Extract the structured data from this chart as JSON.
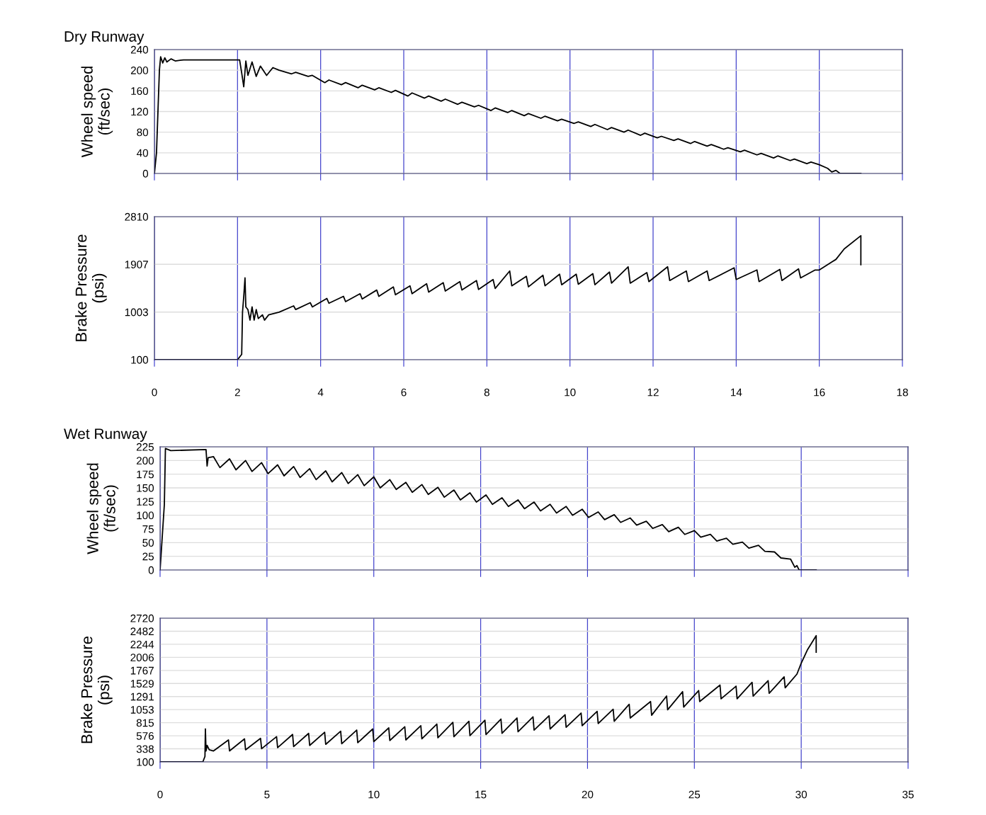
{
  "chart_data": [
    {
      "type": "line",
      "title": "Dry Runway",
      "ylabel": "Wheel speed\n(ft/sec)",
      "xlim": [
        0,
        18
      ],
      "xticks": [
        0,
        2,
        4,
        6,
        8,
        10,
        12,
        14,
        16,
        18
      ],
      "ylim": [
        0,
        240
      ],
      "yticks": [
        0,
        40,
        80,
        120,
        160,
        200,
        240
      ],
      "grid": true,
      "tick_labels": "y",
      "legend": false,
      "series": [
        {
          "color": "#000000",
          "x": [
            0,
            0.05,
            0.12,
            0.15,
            0.2,
            0.25,
            0.3,
            0.4,
            0.5,
            0.7,
            2.05,
            2.1,
            2.15,
            2.2,
            2.25,
            2.35,
            2.45,
            2.55,
            2.7,
            2.85,
            3.0,
            3.3,
            3.4,
            3.7,
            3.8,
            4.1,
            4.2,
            4.5,
            4.6,
            4.9,
            5.0,
            5.3,
            5.4,
            5.7,
            5.8,
            6.1,
            6.2,
            6.5,
            6.6,
            6.9,
            7.0,
            7.3,
            7.4,
            7.7,
            7.8,
            8.1,
            8.2,
            8.5,
            8.6,
            8.9,
            9.0,
            9.3,
            9.4,
            9.7,
            9.8,
            10.1,
            10.2,
            10.5,
            10.6,
            10.9,
            11.0,
            11.3,
            11.4,
            11.7,
            11.8,
            12.1,
            12.2,
            12.5,
            12.6,
            12.9,
            13.0,
            13.3,
            13.4,
            13.7,
            13.8,
            14.1,
            14.2,
            14.5,
            14.6,
            14.9,
            15.0,
            15.3,
            15.4,
            15.7,
            15.8,
            16.0,
            16.2,
            16.3,
            16.4,
            16.5,
            17.0
          ],
          "values": [
            0,
            40,
            200,
            226,
            214,
            224,
            216,
            222,
            218,
            220,
            220,
            195,
            168,
            218,
            190,
            216,
            188,
            208,
            190,
            205,
            200,
            193,
            196,
            188,
            190,
            176,
            181,
            172,
            176,
            166,
            171,
            162,
            166,
            157,
            161,
            150,
            156,
            146,
            150,
            140,
            144,
            134,
            138,
            129,
            132,
            122,
            127,
            118,
            122,
            112,
            116,
            107,
            111,
            102,
            105,
            97,
            100,
            91,
            95,
            85,
            89,
            80,
            84,
            74,
            78,
            69,
            72,
            64,
            67,
            58,
            62,
            53,
            56,
            47,
            50,
            42,
            45,
            36,
            39,
            30,
            34,
            25,
            28,
            19,
            22,
            17,
            10,
            3,
            6,
            0,
            0
          ]
        }
      ]
    },
    {
      "type": "line",
      "ylabel": "Brake Pressure\n(psi)",
      "xlim": [
        0,
        18
      ],
      "xticks": [
        0,
        2,
        4,
        6,
        8,
        10,
        12,
        14,
        16,
        18
      ],
      "ylim": [
        100,
        2810
      ],
      "yticks": [
        100,
        1003,
        1907,
        2810
      ],
      "grid": true,
      "legend": false,
      "series": [
        {
          "color": "#000000",
          "x": [
            0,
            2.0,
            2.05,
            2.1,
            2.12,
            2.15,
            2.18,
            2.2,
            2.25,
            2.3,
            2.35,
            2.4,
            2.45,
            2.5,
            2.6,
            2.65,
            2.75,
            3.0,
            3.35,
            3.4,
            3.75,
            3.8,
            4.15,
            4.2,
            4.55,
            4.6,
            4.95,
            5.0,
            5.35,
            5.4,
            5.75,
            5.8,
            6.15,
            6.2,
            6.55,
            6.6,
            6.95,
            7.0,
            7.35,
            7.4,
            7.75,
            7.8,
            8.15,
            8.2,
            8.55,
            8.6,
            8.95,
            9.0,
            9.35,
            9.4,
            9.75,
            9.8,
            10.15,
            10.2,
            10.55,
            10.6,
            10.95,
            11.0,
            11.4,
            11.45,
            11.85,
            11.9,
            12.35,
            12.4,
            12.8,
            12.85,
            13.3,
            13.35,
            13.95,
            14.0,
            14.5,
            14.55,
            15.05,
            15.1,
            15.5,
            15.55,
            15.9,
            16.0,
            16.3,
            16.4,
            16.6,
            17.0,
            17.0
          ],
          "values": [
            100,
            100,
            150,
            200,
            1000,
            1300,
            1650,
            1100,
            1050,
            850,
            1100,
            850,
            1050,
            880,
            950,
            850,
            950,
            1000,
            1120,
            1050,
            1180,
            1100,
            1260,
            1170,
            1300,
            1200,
            1350,
            1250,
            1420,
            1300,
            1480,
            1330,
            1500,
            1350,
            1540,
            1380,
            1560,
            1400,
            1580,
            1420,
            1600,
            1430,
            1620,
            1450,
            1780,
            1500,
            1680,
            1480,
            1700,
            1500,
            1720,
            1520,
            1720,
            1530,
            1730,
            1520,
            1760,
            1550,
            1860,
            1550,
            1750,
            1580,
            1860,
            1600,
            1780,
            1580,
            1780,
            1600,
            1840,
            1620,
            1800,
            1580,
            1810,
            1600,
            1820,
            1650,
            1800,
            1800,
            1950,
            2000,
            2200,
            2450,
            1900
          ]
        }
      ]
    },
    {
      "type": "line",
      "title": "Wet Runway",
      "ylabel": "Wheel speed\n(ft/sec)",
      "xlim": [
        0,
        35
      ],
      "xticks": [
        0,
        5,
        10,
        15,
        20,
        25,
        30,
        35
      ],
      "ylim": [
        0,
        225
      ],
      "yticks": [
        0,
        25,
        50,
        75,
        100,
        125,
        150,
        175,
        200,
        225
      ],
      "grid": true,
      "tick_labels": "y",
      "legend": false,
      "series": [
        {
          "color": "#000000",
          "x": [
            0,
            0.2,
            0.25,
            0.5,
            2.15,
            2.2,
            2.25,
            2.5,
            2.8,
            3.25,
            3.55,
            4.0,
            4.3,
            4.75,
            5.05,
            5.5,
            5.8,
            6.25,
            6.55,
            7.0,
            7.3,
            7.75,
            8.05,
            8.5,
            8.8,
            9.25,
            9.55,
            10.0,
            10.3,
            10.75,
            11.05,
            11.5,
            11.8,
            12.25,
            12.55,
            13.0,
            13.3,
            13.75,
            14.05,
            14.5,
            14.8,
            15.25,
            15.55,
            16.0,
            16.3,
            16.75,
            17.05,
            17.5,
            17.8,
            18.25,
            18.55,
            19.0,
            19.3,
            19.75,
            20.05,
            20.5,
            20.8,
            21.25,
            21.55,
            22.0,
            22.3,
            22.75,
            23.05,
            23.5,
            23.8,
            24.25,
            24.55,
            25.0,
            25.3,
            25.75,
            26.05,
            26.5,
            26.8,
            27.25,
            27.55,
            28.0,
            28.3,
            28.75,
            29.05,
            29.5,
            29.7,
            29.8,
            29.9,
            30.7
          ],
          "values": [
            0,
            120,
            222,
            218,
            220,
            190,
            205,
            207,
            187,
            203,
            183,
            200,
            180,
            196,
            176,
            192,
            172,
            189,
            169,
            185,
            165,
            181,
            161,
            178,
            158,
            174,
            154,
            170,
            150,
            165,
            147,
            160,
            142,
            156,
            138,
            151,
            133,
            146,
            128,
            141,
            124,
            137,
            120,
            132,
            116,
            128,
            112,
            124,
            108,
            120,
            104,
            116,
            100,
            111,
            96,
            106,
            92,
            101,
            87,
            95,
            82,
            89,
            76,
            83,
            70,
            78,
            65,
            72,
            60,
            65,
            53,
            58,
            47,
            51,
            40,
            45,
            34,
            33,
            22,
            20,
            5,
            8,
            0,
            0
          ]
        }
      ]
    },
    {
      "type": "line",
      "ylabel": "Brake Pressure\n(psi)",
      "xlim": [
        0,
        35
      ],
      "xticks": [
        0,
        5,
        10,
        15,
        20,
        25,
        30,
        35
      ],
      "ylim": [
        100,
        2720
      ],
      "yticks": [
        100,
        338,
        576,
        815,
        1053,
        1291,
        1529,
        1767,
        2006,
        2244,
        2482,
        2720
      ],
      "grid": true,
      "legend": false,
      "series": [
        {
          "color": "#000000",
          "x": [
            0,
            2.0,
            2.1,
            2.12,
            2.15,
            2.2,
            2.3,
            2.5,
            3.2,
            3.25,
            3.95,
            4.0,
            4.7,
            4.75,
            5.45,
            5.5,
            6.2,
            6.25,
            6.95,
            7.0,
            7.7,
            7.75,
            8.45,
            8.5,
            9.2,
            9.25,
            9.95,
            10.0,
            10.7,
            10.75,
            11.45,
            11.5,
            12.2,
            12.25,
            12.95,
            13.0,
            13.7,
            13.75,
            14.45,
            14.5,
            15.2,
            15.25,
            15.95,
            16.0,
            16.7,
            16.75,
            17.45,
            17.5,
            18.2,
            18.25,
            18.95,
            19.0,
            19.7,
            19.75,
            20.45,
            20.5,
            21.2,
            21.25,
            21.95,
            22.0,
            22.95,
            23.0,
            23.7,
            23.75,
            24.45,
            24.5,
            25.2,
            25.25,
            26.2,
            26.25,
            26.95,
            27.0,
            27.7,
            27.75,
            28.45,
            28.5,
            29.2,
            29.25,
            29.8,
            30.0,
            30.3,
            30.7,
            30.7
          ],
          "values": [
            100,
            100,
            200,
            700,
            300,
            400,
            320,
            300,
            500,
            300,
            520,
            320,
            530,
            340,
            560,
            360,
            600,
            380,
            620,
            400,
            640,
            420,
            660,
            430,
            680,
            450,
            700,
            470,
            720,
            490,
            740,
            500,
            760,
            520,
            790,
            540,
            820,
            560,
            840,
            580,
            860,
            600,
            880,
            620,
            900,
            650,
            920,
            680,
            940,
            700,
            960,
            730,
            990,
            760,
            1020,
            800,
            1060,
            840,
            1150,
            900,
            1200,
            950,
            1300,
            1050,
            1380,
            1100,
            1400,
            1200,
            1500,
            1250,
            1480,
            1250,
            1550,
            1300,
            1580,
            1350,
            1650,
            1450,
            1700,
            1900,
            2150,
            2400,
            2100
          ]
        }
      ]
    }
  ]
}
